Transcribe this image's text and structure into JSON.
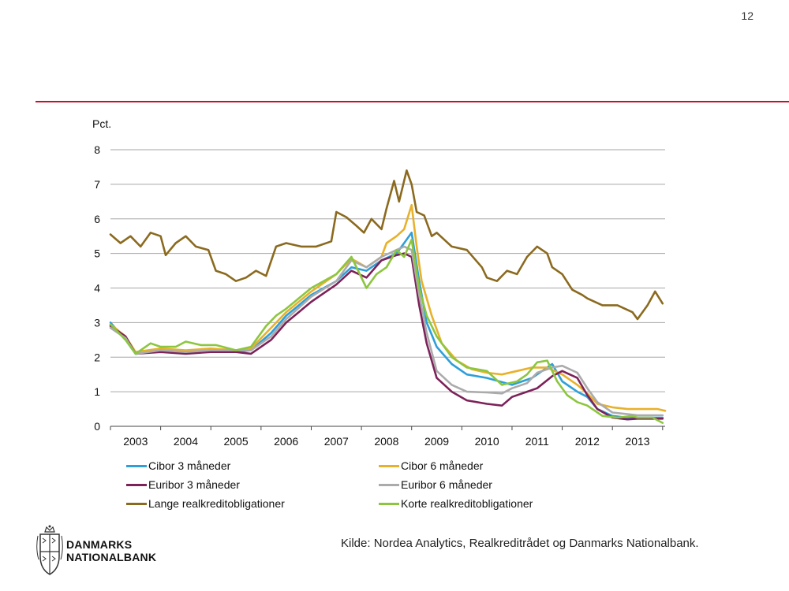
{
  "page_number": "12",
  "source": "Kilde: Nordea Analytics, Realkreditrådet  og Danmarks Nationalbank.",
  "logo": {
    "line1": "DANMARKS",
    "line2": "NATIONALBANK",
    "icon": "royal-crest-icon"
  },
  "colors": {
    "rule": "#c8102e",
    "grid": "#a6a6a6"
  },
  "chart_data": {
    "type": "line",
    "ylabel": "Pct.",
    "ylim": [
      0,
      8
    ],
    "yticks": [
      0,
      1,
      2,
      3,
      4,
      5,
      6,
      7,
      8
    ],
    "xlim": [
      2002.5,
      2013.55
    ],
    "xtick_labels": [
      "2003",
      "2004",
      "2005",
      "2006",
      "2007",
      "2008",
      "2009",
      "2010",
      "2011",
      "2012",
      "2013"
    ],
    "grid": "horizontal",
    "legend_position": "bottom",
    "series": [
      {
        "name": "Cibor 3 måneder",
        "color": "#2e9fd9",
        "x": [
          2002.5,
          2002.8,
          2003.0,
          2003.5,
          2004.0,
          2004.5,
          2005.0,
          2005.3,
          2005.7,
          2006.0,
          2006.5,
          2007.0,
          2007.3,
          2007.6,
          2007.9,
          2008.2,
          2008.35,
          2008.5,
          2008.65,
          2008.8,
          2009.0,
          2009.3,
          2009.6,
          2010.0,
          2010.5,
          2010.9,
          2011.1,
          2011.3,
          2011.5,
          2011.8,
          2012.0,
          2012.2,
          2012.5,
          2012.8,
          2013.0,
          2013.5
        ],
        "y": [
          3.0,
          2.5,
          2.1,
          2.2,
          2.15,
          2.2,
          2.15,
          2.2,
          2.7,
          3.2,
          3.8,
          4.2,
          4.6,
          4.5,
          4.8,
          5.0,
          5.3,
          5.6,
          4.2,
          3.0,
          2.3,
          1.8,
          1.5,
          1.4,
          1.2,
          1.4,
          1.6,
          1.8,
          1.3,
          1.0,
          0.85,
          0.5,
          0.3,
          0.25,
          0.25,
          0.25
        ]
      },
      {
        "name": "Cibor 6 måneder",
        "color": "#e8b12b",
        "x": [
          2002.5,
          2002.8,
          2003.0,
          2003.5,
          2004.0,
          2004.5,
          2005.0,
          2005.3,
          2005.7,
          2006.0,
          2006.5,
          2007.0,
          2007.3,
          2007.6,
          2007.9,
          2008.0,
          2008.2,
          2008.35,
          2008.5,
          2008.6,
          2008.7,
          2008.9,
          2009.1,
          2009.4,
          2009.7,
          2010.0,
          2010.3,
          2010.6,
          2010.9,
          2011.2,
          2011.5,
          2011.8,
          2012.0,
          2012.2,
          2012.5,
          2012.8,
          2013.0,
          2013.4,
          2013.55
        ],
        "y": [
          2.95,
          2.6,
          2.15,
          2.25,
          2.2,
          2.25,
          2.2,
          2.25,
          2.85,
          3.3,
          3.9,
          4.4,
          4.85,
          4.6,
          4.9,
          5.3,
          5.5,
          5.7,
          6.4,
          5.2,
          4.2,
          3.2,
          2.4,
          1.9,
          1.65,
          1.55,
          1.5,
          1.6,
          1.7,
          1.7,
          1.5,
          1.2,
          0.95,
          0.65,
          0.55,
          0.5,
          0.5,
          0.5,
          0.45
        ]
      },
      {
        "name": "Euribor 3 måneder",
        "color": "#7c2259",
        "x": [
          2002.5,
          2002.8,
          2003.0,
          2003.5,
          2004.0,
          2004.5,
          2005.0,
          2005.3,
          2005.7,
          2006.0,
          2006.5,
          2007.0,
          2007.3,
          2007.6,
          2007.9,
          2008.2,
          2008.35,
          2008.5,
          2008.65,
          2008.8,
          2009.0,
          2009.3,
          2009.6,
          2010.0,
          2010.3,
          2010.5,
          2010.8,
          2011.0,
          2011.3,
          2011.5,
          2011.8,
          2012.0,
          2012.2,
          2012.5,
          2012.8,
          2013.0,
          2013.5
        ],
        "y": [
          2.9,
          2.6,
          2.1,
          2.15,
          2.1,
          2.15,
          2.15,
          2.1,
          2.5,
          3.0,
          3.6,
          4.1,
          4.5,
          4.3,
          4.8,
          4.95,
          5.0,
          4.9,
          3.5,
          2.4,
          1.4,
          1.0,
          0.75,
          0.65,
          0.6,
          0.85,
          1.0,
          1.1,
          1.45,
          1.6,
          1.4,
          0.9,
          0.5,
          0.25,
          0.2,
          0.22,
          0.22
        ]
      },
      {
        "name": "Euribor 6 måneder",
        "color": "#ababab",
        "x": [
          2002.5,
          2002.8,
          2003.0,
          2003.5,
          2004.0,
          2004.5,
          2005.0,
          2005.3,
          2005.7,
          2006.0,
          2006.5,
          2007.0,
          2007.3,
          2007.6,
          2007.9,
          2008.2,
          2008.35,
          2008.5,
          2008.65,
          2008.8,
          2009.0,
          2009.3,
          2009.6,
          2010.0,
          2010.3,
          2010.5,
          2010.8,
          2011.0,
          2011.3,
          2011.5,
          2011.8,
          2012.0,
          2012.2,
          2012.5,
          2012.8,
          2013.0,
          2013.5
        ],
        "y": [
          2.85,
          2.55,
          2.1,
          2.2,
          2.15,
          2.2,
          2.2,
          2.2,
          2.6,
          3.1,
          3.75,
          4.2,
          4.8,
          4.6,
          4.9,
          5.1,
          5.2,
          5.1,
          3.8,
          2.7,
          1.6,
          1.2,
          1.0,
          0.98,
          0.95,
          1.1,
          1.25,
          1.55,
          1.7,
          1.75,
          1.55,
          1.1,
          0.7,
          0.4,
          0.35,
          0.32,
          0.32
        ]
      },
      {
        "name": "Lange realkreditobligationer",
        "color": "#8b6a1f",
        "x": [
          2002.5,
          2002.7,
          2002.9,
          2003.1,
          2003.3,
          2003.5,
          2003.6,
          2003.8,
          2004.0,
          2004.2,
          2004.45,
          2004.6,
          2004.8,
          2005.0,
          2005.2,
          2005.4,
          2005.6,
          2005.8,
          2006.0,
          2006.3,
          2006.6,
          2006.9,
          2007.0,
          2007.2,
          2007.4,
          2007.55,
          2007.7,
          2007.9,
          2008.0,
          2008.15,
          2008.25,
          2008.4,
          2008.5,
          2008.6,
          2008.75,
          2008.9,
          2009.0,
          2009.3,
          2009.6,
          2009.9,
          2010.0,
          2010.2,
          2010.4,
          2010.6,
          2010.8,
          2011.0,
          2011.2,
          2011.3,
          2011.5,
          2011.7,
          2011.9,
          2012.0,
          2012.3,
          2012.6,
          2012.9,
          2013.0,
          2013.2,
          2013.35,
          2013.5
        ],
        "y": [
          5.55,
          5.3,
          5.5,
          5.2,
          5.6,
          5.5,
          4.95,
          5.3,
          5.5,
          5.2,
          5.1,
          4.5,
          4.4,
          4.2,
          4.3,
          4.5,
          4.35,
          5.2,
          5.3,
          5.2,
          5.2,
          5.35,
          6.2,
          6.05,
          5.8,
          5.6,
          6.0,
          5.7,
          6.3,
          7.1,
          6.5,
          7.4,
          7.0,
          6.2,
          6.1,
          5.5,
          5.6,
          5.2,
          5.1,
          4.6,
          4.3,
          4.2,
          4.5,
          4.4,
          4.9,
          5.2,
          5.0,
          4.6,
          4.4,
          3.95,
          3.8,
          3.7,
          3.5,
          3.5,
          3.3,
          3.1,
          3.5,
          3.9,
          3.55
        ]
      },
      {
        "name": "Korte realkreditobligationer",
        "color": "#8cc63f",
        "x": [
          2002.5,
          2002.8,
          2003.0,
          2003.3,
          2003.5,
          2003.8,
          2004.0,
          2004.3,
          2004.6,
          2005.0,
          2005.3,
          2005.6,
          2005.8,
          2006.0,
          2006.5,
          2007.0,
          2007.3,
          2007.6,
          2007.8,
          2008.0,
          2008.2,
          2008.35,
          2008.5,
          2008.65,
          2008.8,
          2009.0,
          2009.3,
          2009.6,
          2010.0,
          2010.3,
          2010.6,
          2010.8,
          2011.0,
          2011.2,
          2011.4,
          2011.6,
          2011.8,
          2012.0,
          2012.3,
          2012.6,
          2012.9,
          2013.0,
          2013.3,
          2013.5
        ],
        "y": [
          2.95,
          2.5,
          2.1,
          2.4,
          2.3,
          2.3,
          2.45,
          2.35,
          2.35,
          2.2,
          2.3,
          2.9,
          3.2,
          3.4,
          4.0,
          4.4,
          4.9,
          4.0,
          4.4,
          4.6,
          5.1,
          4.9,
          5.4,
          4.0,
          3.2,
          2.6,
          2.0,
          1.7,
          1.6,
          1.2,
          1.3,
          1.5,
          1.85,
          1.9,
          1.3,
          0.9,
          0.7,
          0.6,
          0.3,
          0.25,
          0.3,
          0.25,
          0.25,
          0.1
        ]
      }
    ]
  }
}
